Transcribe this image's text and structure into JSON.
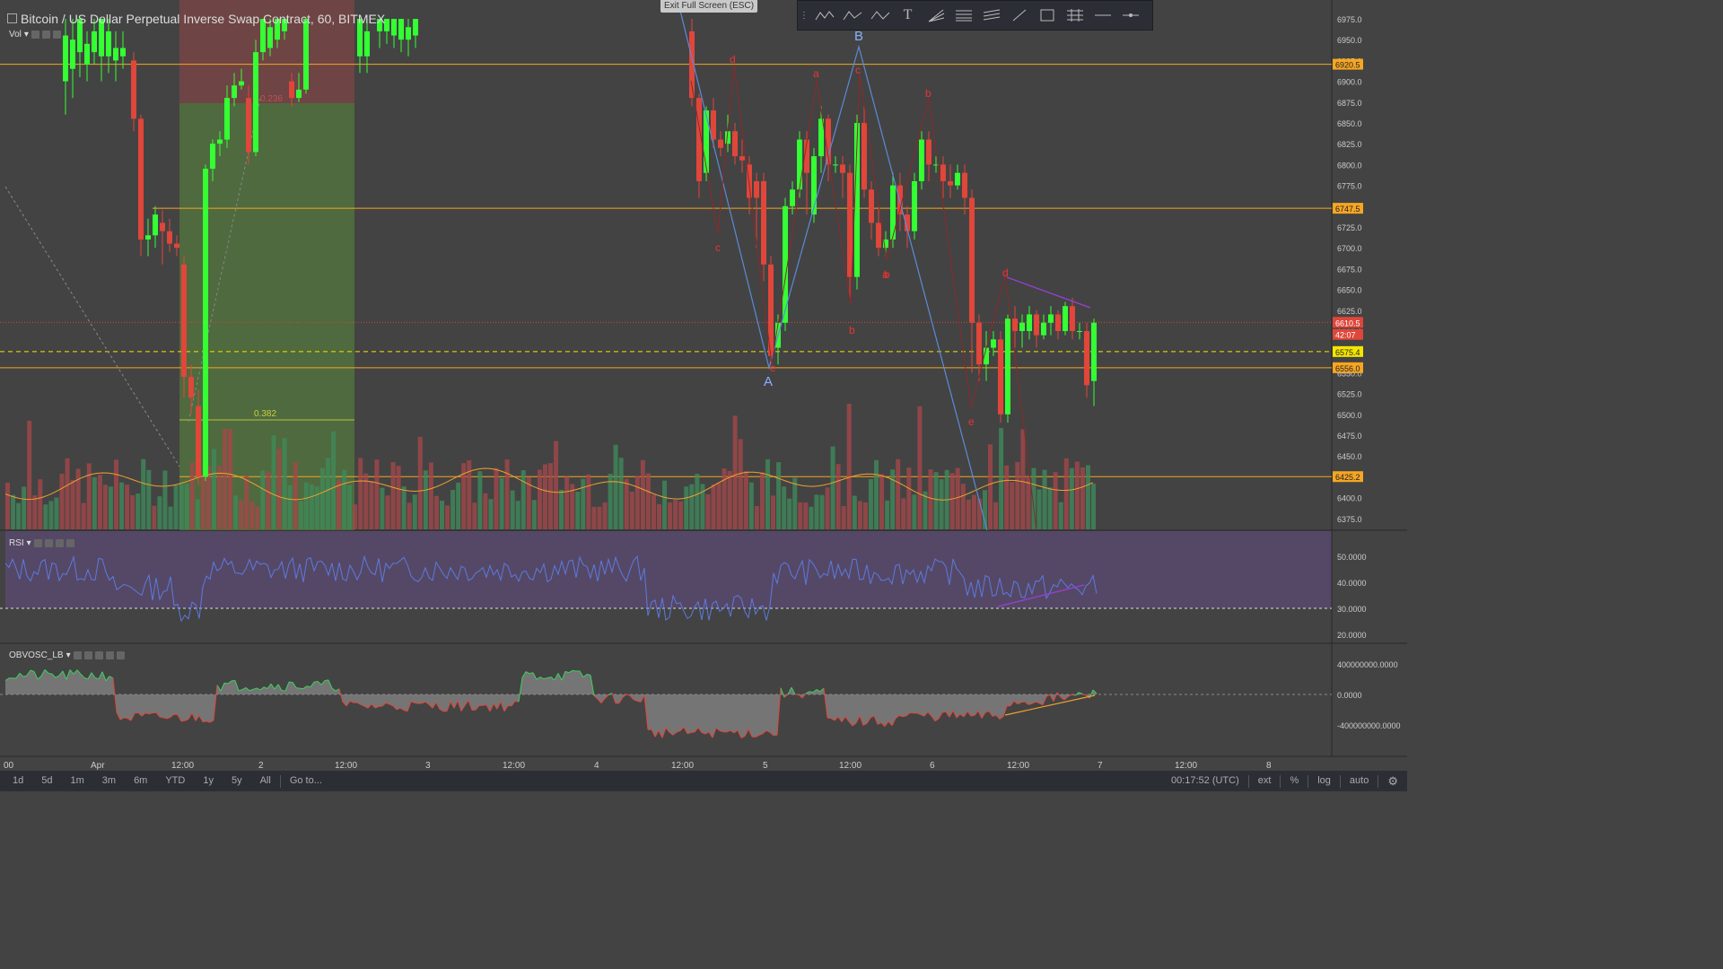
{
  "header": {
    "title": "Bitcoin / US Dollar Perpetual Inverse Swap Contract, 60, BITMEX",
    "volume_label": "Vol",
    "exit_fullscreen": "Exit Full Screen (ESC)"
  },
  "toolbar": {
    "tools": [
      "xabcd-pattern-icon",
      "abcd-pattern-icon",
      "abc-pattern-icon",
      "text-icon",
      "fan-icon",
      "parallel-channel-icon",
      "regression-channel-icon",
      "trend-line-icon",
      "rectangle-icon",
      "fib-retracement-icon",
      "horizontal-line-icon",
      "horizontal-ray-icon"
    ]
  },
  "price_axis": {
    "ticks": [
      "6975.0",
      "6950.0",
      "6925.0",
      "6900.0",
      "6875.0",
      "6850.0",
      "6825.0",
      "6800.0",
      "6775.0",
      "6750.0",
      "6725.0",
      "6700.0",
      "6675.0",
      "6650.0",
      "6625.0",
      "6600.0",
      "6575.0",
      "6550.0",
      "6525.0",
      "6500.0",
      "6475.0",
      "6450.0",
      "6425.0",
      "6400.0",
      "6375.0"
    ],
    "markers": [
      {
        "text": "6920.5",
        "price": 6920.5,
        "color": "#f5a623"
      },
      {
        "text": "6747.5",
        "price": 6747.5,
        "color": "#f5a623"
      },
      {
        "text": "6610.5",
        "price": 6610.5,
        "color": "#e0463a"
      },
      {
        "text": "42:07",
        "price": 6596,
        "color": "#e0463a"
      },
      {
        "text": "6575.4",
        "price": 6575.4,
        "color": "#f3e600"
      },
      {
        "text": "6556.0",
        "price": 6556.0,
        "color": "#f5a623"
      },
      {
        "text": "6425.2",
        "price": 6425.2,
        "color": "#f5a623"
      }
    ]
  },
  "fib": {
    "label_236": "0.236",
    "label_382": "0.382"
  },
  "pattern_labels": {
    "A": "A",
    "B": "B"
  },
  "wave_labels": [
    "d",
    "a",
    "c",
    "b",
    "c",
    "a",
    "b",
    "d",
    "e",
    "e",
    "b"
  ],
  "rsi": {
    "label": "RSI",
    "ticks": [
      "50.0000",
      "40.0000",
      "30.0000",
      "20.0000"
    ]
  },
  "obv": {
    "label": "OBVOSC_LB",
    "ticks": [
      "400000000.0000",
      "0.0000",
      "-400000000.0000"
    ]
  },
  "time_axis": [
    "00",
    "Apr",
    "12:00",
    "2",
    "12:00",
    "3",
    "12:00",
    "4",
    "12:00",
    "5",
    "12:00",
    "6",
    "12:00",
    "7",
    "12:00",
    "8"
  ],
  "bottom_bar": {
    "ranges": [
      "1d",
      "5d",
      "1m",
      "3m",
      "6m",
      "YTD",
      "1y",
      "5y",
      "All"
    ],
    "goto": "Go to...",
    "clock": "00:17:52 (UTC)",
    "ext": "ext",
    "pct": "%",
    "log": "log",
    "auto": "auto"
  },
  "colors": {
    "up": "#33ff33",
    "down": "#e0463a",
    "bg": "#434343",
    "rsi_band": "#5b4a72"
  }
}
